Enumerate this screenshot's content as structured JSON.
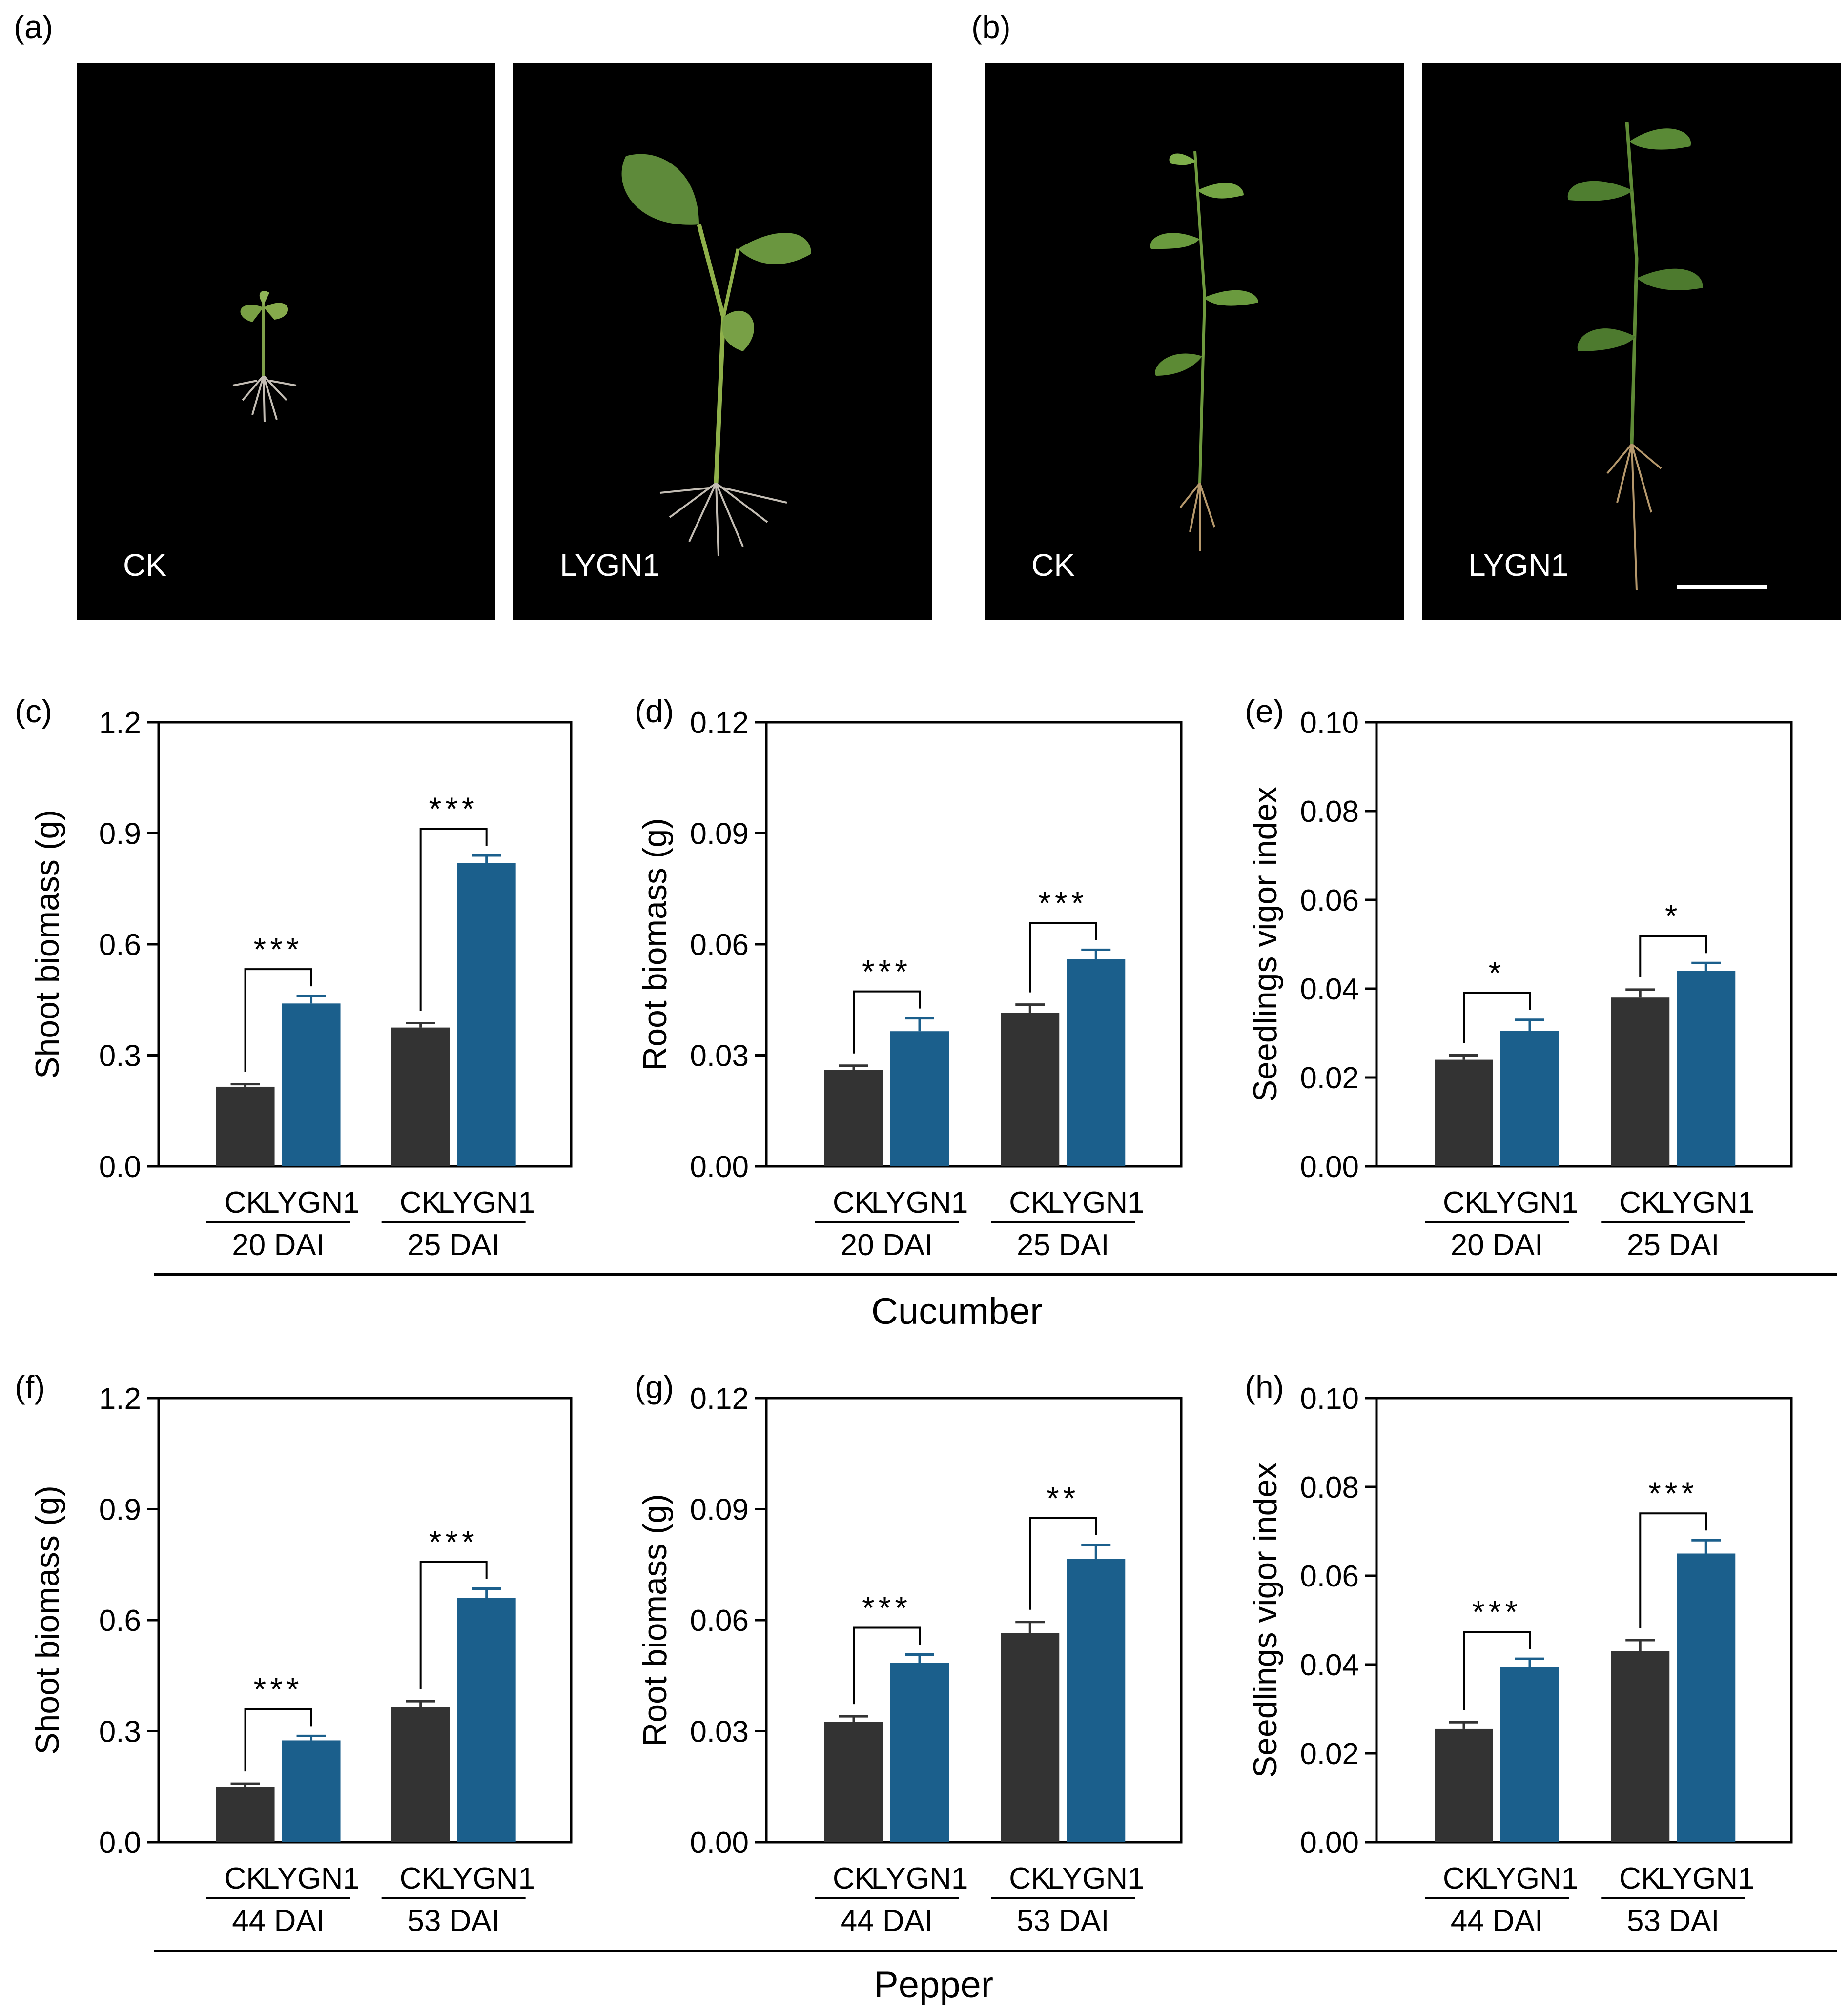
{
  "colors": {
    "ck": "#333333",
    "lygn1": "#1b5f8c",
    "photo_bg": "#000000",
    "text": "#000000"
  },
  "photos": [
    {
      "panel": "(a)",
      "images": [
        {
          "caption": "CK"
        },
        {
          "caption": "LYGN1"
        }
      ]
    },
    {
      "panel": "(b)",
      "images": [
        {
          "caption": "CK"
        },
        {
          "caption": "LYGN1"
        }
      ]
    }
  ],
  "sections": [
    {
      "label": "Cucumber"
    },
    {
      "label": "Pepper"
    }
  ],
  "chart_data": [
    {
      "panel": "(c)",
      "type": "bar",
      "ylabel": "Shoot biomass (g)",
      "ylim": [
        0,
        1.2
      ],
      "yticks": [
        0.0,
        0.3,
        0.6,
        0.9,
        1.2
      ],
      "ytick_labels": [
        "0.0",
        "0.3",
        "0.6",
        "0.9",
        "1.2"
      ],
      "groups": [
        {
          "label": "20 DAI",
          "bars": [
            {
              "name": "CK",
              "value": 0.215,
              "err": 0.007
            },
            {
              "name": "LYGN1",
              "value": 0.44,
              "err": 0.02
            }
          ],
          "sig": "***"
        },
        {
          "label": "25 DAI",
          "bars": [
            {
              "name": "CK",
              "value": 0.375,
              "err": 0.012
            },
            {
              "name": "LYGN1",
              "value": 0.82,
              "err": 0.02
            }
          ],
          "sig": "***"
        }
      ]
    },
    {
      "panel": "(d)",
      "type": "bar",
      "ylabel": "Root biomass (g)",
      "ylim": [
        0,
        0.12
      ],
      "yticks": [
        0,
        0.03,
        0.06,
        0.09,
        0.12
      ],
      "ytick_labels": [
        "0.00",
        "0.03",
        "0.06",
        "0.09",
        "0.12"
      ],
      "groups": [
        {
          "label": "20 DAI",
          "bars": [
            {
              "name": "CK",
              "value": 0.026,
              "err": 0.0012
            },
            {
              "name": "LYGN1",
              "value": 0.0365,
              "err": 0.0035
            }
          ],
          "sig": "***"
        },
        {
          "label": "25 DAI",
          "bars": [
            {
              "name": "CK",
              "value": 0.0415,
              "err": 0.0022
            },
            {
              "name": "LYGN1",
              "value": 0.056,
              "err": 0.0025
            }
          ],
          "sig": "***"
        }
      ]
    },
    {
      "panel": "(e)",
      "type": "bar",
      "ylabel": "Seedlings vigor index",
      "ylim": [
        0,
        0.1
      ],
      "yticks": [
        0,
        0.02,
        0.04,
        0.06,
        0.08,
        0.1
      ],
      "ytick_labels": [
        "0.00",
        "0.02",
        "0.04",
        "0.06",
        "0.08",
        "0.10"
      ],
      "groups": [
        {
          "label": "20 DAI",
          "bars": [
            {
              "name": "CK",
              "value": 0.024,
              "err": 0.001
            },
            {
              "name": "LYGN1",
              "value": 0.0305,
              "err": 0.0025
            }
          ],
          "sig": "*"
        },
        {
          "label": "25 DAI",
          "bars": [
            {
              "name": "CK",
              "value": 0.038,
              "err": 0.0018
            },
            {
              "name": "LYGN1",
              "value": 0.044,
              "err": 0.0018
            }
          ],
          "sig": "*"
        }
      ]
    },
    {
      "panel": "(f)",
      "type": "bar",
      "ylabel": "Shoot biomass (g)",
      "ylim": [
        0,
        1.2
      ],
      "yticks": [
        0.0,
        0.3,
        0.6,
        0.9,
        1.2
      ],
      "ytick_labels": [
        "0.0",
        "0.3",
        "0.6",
        "0.9",
        "1.2"
      ],
      "groups": [
        {
          "label": "44 DAI",
          "bars": [
            {
              "name": "CK",
              "value": 0.15,
              "err": 0.008
            },
            {
              "name": "LYGN1",
              "value": 0.275,
              "err": 0.012
            }
          ],
          "sig": "***"
        },
        {
          "label": "53 DAI",
          "bars": [
            {
              "name": "CK",
              "value": 0.365,
              "err": 0.016
            },
            {
              "name": "LYGN1",
              "value": 0.66,
              "err": 0.025
            }
          ],
          "sig": "***"
        }
      ]
    },
    {
      "panel": "(g)",
      "type": "bar",
      "ylabel": "Root biomass (g)",
      "ylim": [
        0,
        0.12
      ],
      "yticks": [
        0,
        0.03,
        0.06,
        0.09,
        0.12
      ],
      "ytick_labels": [
        "0.00",
        "0.03",
        "0.06",
        "0.09",
        "0.12"
      ],
      "groups": [
        {
          "label": "44 DAI",
          "bars": [
            {
              "name": "CK",
              "value": 0.0325,
              "err": 0.0015
            },
            {
              "name": "LYGN1",
              "value": 0.0485,
              "err": 0.0022
            }
          ],
          "sig": "***"
        },
        {
          "label": "53 DAI",
          "bars": [
            {
              "name": "CK",
              "value": 0.0565,
              "err": 0.003
            },
            {
              "name": "LYGN1",
              "value": 0.0765,
              "err": 0.0038
            }
          ],
          "sig": "**"
        }
      ]
    },
    {
      "panel": "(h)",
      "type": "bar",
      "ylabel": "Seedlings vigor index",
      "ylim": [
        0,
        0.1
      ],
      "yticks": [
        0,
        0.02,
        0.04,
        0.06,
        0.08,
        0.1
      ],
      "ytick_labels": [
        "0.00",
        "0.02",
        "0.04",
        "0.06",
        "0.08",
        "0.10"
      ],
      "groups": [
        {
          "label": "44 DAI",
          "bars": [
            {
              "name": "CK",
              "value": 0.0255,
              "err": 0.0015
            },
            {
              "name": "LYGN1",
              "value": 0.0395,
              "err": 0.0018
            }
          ],
          "sig": "***"
        },
        {
          "label": "53 DAI",
          "bars": [
            {
              "name": "CK",
              "value": 0.043,
              "err": 0.0025
            },
            {
              "name": "LYGN1",
              "value": 0.065,
              "err": 0.003
            }
          ],
          "sig": "***"
        }
      ]
    }
  ]
}
